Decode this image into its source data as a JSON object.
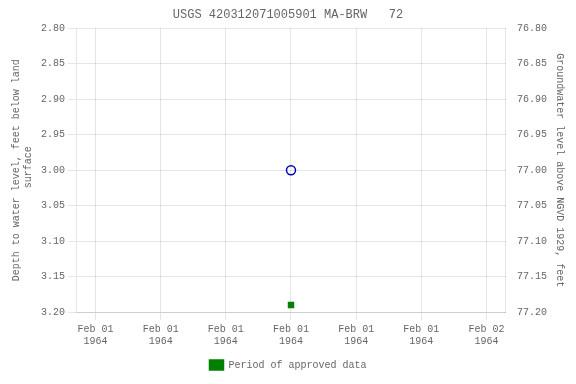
{
  "chart_data": {
    "type": "scatter",
    "title": "USGS 420312071005901 MA-BRW   72",
    "y_label": "Depth to water level, feet below land\n surface",
    "y2_label": "Groundwater level above NGVD 1929, feet",
    "x": [
      3
    ],
    "xlim": [
      -0.3,
      6.3
    ],
    "xticks": [
      {
        "value": 0,
        "label": "Feb 01\n1964"
      },
      {
        "value": 1,
        "label": "Feb 01\n1964"
      },
      {
        "value": 2,
        "label": "Feb 01\n1964"
      },
      {
        "value": 3,
        "label": "Feb 01\n1964"
      },
      {
        "value": 4,
        "label": "Feb 01\n1964"
      },
      {
        "value": 5,
        "label": "Feb 01\n1964"
      },
      {
        "value": 6,
        "label": "Feb 02\n1964"
      }
    ],
    "ylim": [
      3.2,
      2.8
    ],
    "yticks": [
      {
        "value": 2.8,
        "label": "2.80"
      },
      2.85,
      {
        "value": 2.9,
        "label": "2.90"
      },
      2.95,
      {
        "value": 3.0,
        "label": "3.00"
      },
      3.05,
      {
        "value": 3.1,
        "label": "3.10"
      },
      3.15,
      {
        "value": 3.2,
        "label": "3.20"
      }
    ],
    "y2lim": [
      77.2,
      76.8
    ],
    "y2ticks": [
      {
        "value": 76.8,
        "label": "76.80"
      },
      76.85,
      {
        "value": 76.9,
        "label": "76.90"
      },
      76.95,
      {
        "value": 77.0,
        "label": "77.00"
      },
      77.05,
      {
        "value": 77.1,
        "label": "77.10"
      },
      77.15,
      {
        "value": 77.2,
        "label": "77.20"
      }
    ],
    "series": [
      {
        "color": "#0000bb",
        "marker": "circle-open",
        "values": [
          3.0
        ]
      },
      {
        "name": "Period of approved data",
        "color": "#008000",
        "marker": "square",
        "values": [
          3.19
        ]
      }
    ],
    "grid": true,
    "legend": "bottom"
  }
}
